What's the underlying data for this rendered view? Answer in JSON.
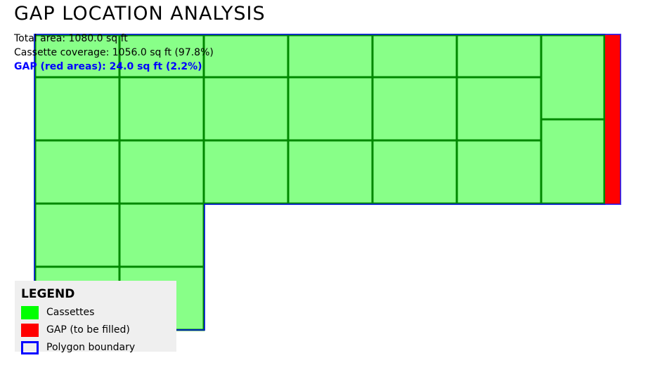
{
  "title": "GAP LOCATION ANALYSIS",
  "stats": {
    "total_area": "Total area: 1080.0 sq ft",
    "coverage": "Cassette coverage: 1056.0 sq ft (97.8%)",
    "gap": "GAP (red areas): 24.0 sq ft (2.2%)"
  },
  "legend": {
    "title": "LEGEND",
    "items": [
      {
        "label": "Cassettes",
        "color": "#00ff00"
      },
      {
        "label": "GAP (to be filled)",
        "color": "#ff0000"
      },
      {
        "label": "Polygon boundary",
        "color": "#0000ff"
      }
    ]
  },
  "colors": {
    "cassette_fill": "#88ff88",
    "cassette_stroke": "#008800",
    "gap_fill": "#ff0000",
    "boundary": "#0000ff"
  }
}
